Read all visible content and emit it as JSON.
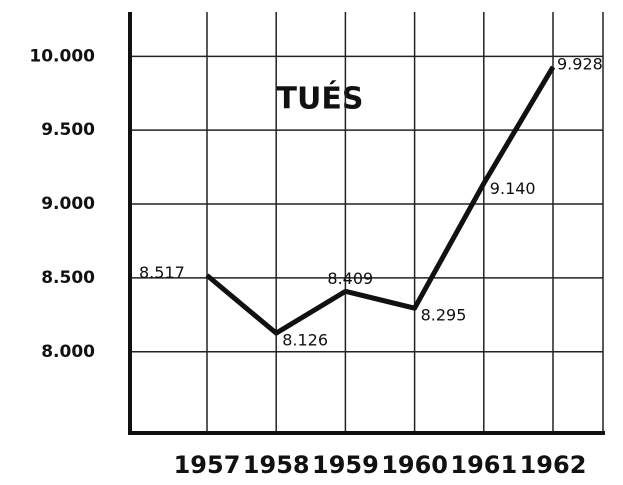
{
  "chart_data": {
    "type": "line",
    "title": "TUÉS",
    "categories": [
      "1957",
      "1958",
      "1959",
      "1960",
      "1961",
      "1962"
    ],
    "series": [
      {
        "name": "TUÉS",
        "color": "#111111",
        "values": [
          8517,
          8126,
          8409,
          8295,
          9140,
          9928
        ],
        "value_labels": [
          "8.517",
          "8.126",
          "8.409",
          "8.295",
          "9.140",
          "9.928"
        ]
      }
    ],
    "ylim": [
      7450,
      10300
    ],
    "yticks": [
      {
        "value": 8000,
        "label": "8.000"
      },
      {
        "value": 8500,
        "label": "8.500"
      },
      {
        "value": 9000,
        "label": "9.000"
      },
      {
        "value": 9500,
        "label": "9.500"
      },
      {
        "value": 10000,
        "label": "10.000"
      }
    ],
    "grid": true
  }
}
